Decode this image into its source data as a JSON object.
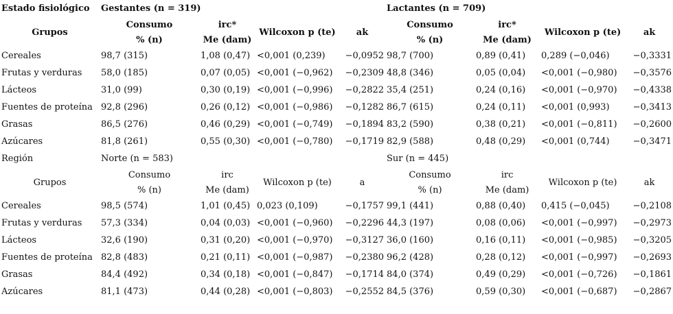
{
  "section1": {
    "label": "Estado fisiológico",
    "groupA": "Gestantes (n = 319)",
    "groupB": "Lactantes (n = 709)",
    "headers": {
      "grupos": "Grupos",
      "consumo": "Consumo",
      "consumo_unit": "% (n)",
      "irc": "irc*",
      "irc_unit": "Me (dam)",
      "wilcoxon": "Wilcoxon p (te)",
      "ak": "ak"
    },
    "rows": [
      {
        "grupo": "Cereales",
        "a": [
          "98,7 (315)",
          "1,08 (0,47)",
          "<0,001 (0,239)",
          "−0,0952"
        ],
        "b": [
          "98,7 (700)",
          "0,89 (0,41)",
          "0,289 (−0,046)",
          "−0,3331"
        ]
      },
      {
        "grupo": "Frutas y verduras",
        "a": [
          "58,0 (185)",
          "0,07 (0,05)",
          "<0,001 (−0,962)",
          "−0,2309"
        ],
        "b": [
          "48,8 (346)",
          "0,05 (0,04)",
          "<0,001 (−0,980)",
          "−0,3576"
        ]
      },
      {
        "grupo": "Lácteos",
        "a": [
          "31,0 (99)",
          "0,30 (0,19)",
          "<0,001 (−0,996)",
          "−0,2822"
        ],
        "b": [
          "35,4 (251)",
          "0,24 (0,16)",
          "<0,001 (−0,970)",
          "−0,4338"
        ]
      },
      {
        "grupo": "Fuentes de proteína",
        "a": [
          "92,8 (296)",
          "0,26 (0,12)",
          "<0,001 (−0,986)",
          "−0,1282"
        ],
        "b": [
          "86,7 (615)",
          "0,24 (0,11)",
          "<0,001 (0,993)",
          "−0,3413"
        ]
      },
      {
        "grupo": "Grasas",
        "a": [
          "86,5 (276)",
          "0,46 (0,29)",
          "<0,001 (−0,749)",
          "−0,1894"
        ],
        "b": [
          "83,2 (590)",
          "0,38 (0,21)",
          "<0,001 (−0,811)",
          "−0,2600"
        ]
      },
      {
        "grupo": "Azúcares",
        "a": [
          "81,8 (261)",
          "0,55 (0,30)",
          "<0,001 (−0,780)",
          "−0,1719"
        ],
        "b": [
          "82,9 (588)",
          "0,48 (0,29)",
          "<0,001 (0,744)",
          "−0,3471"
        ]
      }
    ]
  },
  "section2": {
    "label": "Región",
    "groupA": "Norte (n = 583)",
    "groupB": "Sur (n = 445)",
    "headers": {
      "grupos": "Grupos",
      "consumo": "Consumo",
      "consumo_unit": "% (n)",
      "irc": "irc",
      "irc_unit": "Me (dam)",
      "wilcoxon": "Wilcoxon p (te)",
      "a": "a",
      "ak": "ak"
    },
    "rows": [
      {
        "grupo": "Cereales",
        "a": [
          "98,5 (574)",
          "1,01 (0,45)",
          "0,023 (0,109)",
          "−0,1757"
        ],
        "b": [
          "99,1 (441)",
          "0,88 (0,40)",
          "0,415 (−0,045)",
          "−0,2108"
        ]
      },
      {
        "grupo": "Frutas y verduras",
        "a": [
          "57,3 (334)",
          "0,04 (0,03)",
          "<0,001 (−0,960)",
          "−0,2296"
        ],
        "b": [
          "44,3 (197)",
          "0,08 (0,06)",
          "<0,001 (−0,997)",
          "−0,2973"
        ]
      },
      {
        "grupo": "Lácteos",
        "a": [
          "32,6 (190)",
          "0,31 (0,20)",
          "<0,001 (−0,970)",
          "−0,3127"
        ],
        "b": [
          "36,0 (160)",
          "0,16 (0,11)",
          "<0,001 (−0,985)",
          "−0,3205"
        ]
      },
      {
        "grupo": "Fuentes de proteína",
        "a": [
          "82,8 (483)",
          "0,21 (0,11)",
          "<0,001 (−0,987)",
          "−0,2380"
        ],
        "b": [
          "96,2 (428)",
          "0,28 (0,12)",
          "<0,001 (−0,997)",
          "−0,2693"
        ]
      },
      {
        "grupo": "Grasas",
        "a": [
          "84,4 (492)",
          "0,34 (0,18)",
          "<0,001 (−0,847)",
          "−0,1714"
        ],
        "b": [
          "84,0 (374)",
          "0,49 (0,29)",
          "<0,001 (−0,726)",
          "−0,1861"
        ]
      },
      {
        "grupo": "Azúcares",
        "a": [
          "81,1 (473)",
          "0,44 (0,28)",
          "<0,001 (−0,803)",
          "−0,2552"
        ],
        "b": [
          "84,5 (376)",
          "0,59 (0,30)",
          "<0,001 (−0,687)",
          "−0,2867"
        ]
      }
    ]
  }
}
